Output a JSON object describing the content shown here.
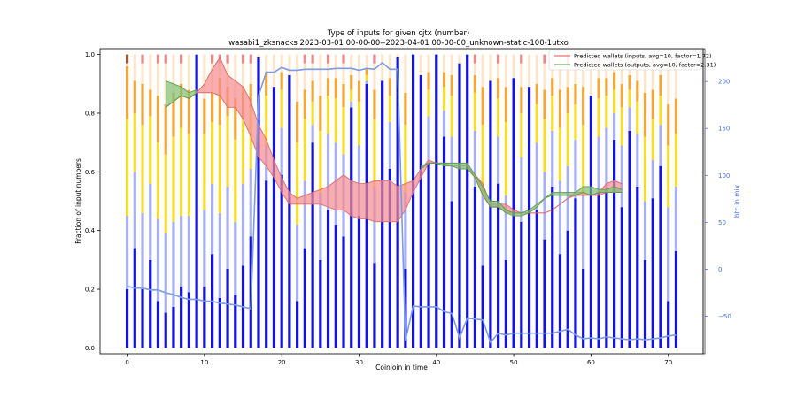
{
  "chart_data": {
    "type": "bar",
    "title": "Type of inputs for given cjtx (number)",
    "subtitle": "wasabi1_zksnacks 2023-03-01 00-00-00--2023-04-01 00-00-00_unknown-static-100-1utxo",
    "xlabel": "Coinjoin in time",
    "ylabel": "Fraction of input numbers",
    "y2label": "btc in mix",
    "xlim": [
      -3.5,
      74.5
    ],
    "ylim": [
      -0.02,
      1.02
    ],
    "y2lim": [
      -90,
      235
    ],
    "xticks": [
      0,
      10,
      20,
      30,
      40,
      50,
      60,
      70
    ],
    "yticks": [
      0.0,
      0.2,
      0.4,
      0.6,
      0.8,
      1.0
    ],
    "y2ticks": [
      -50,
      0,
      50,
      100,
      150,
      200
    ],
    "grid": false,
    "legend_position": "top-right",
    "legend": [
      {
        "label": "Predicted wallets (inputs, avg=10, factor=1.72)",
        "color": "#f07070"
      },
      {
        "label": "Predicted wallets (outputs, avg=10, factor=2.31)",
        "color": "#70b070"
      }
    ],
    "colors": {
      "fresh": "#1414d2",
      "remix": "#a9b0f0",
      "friends": "#f5dc32",
      "friends2": "#f0a83c",
      "other": "#fbe6cc",
      "peak": "#e88a8a",
      "dark": "#9a5a38",
      "btc_line": "#7b9be6",
      "inputs_fill": "#f58a8f",
      "inputs_line": "#d96b6b",
      "outputs_fill": "#7fbf6f",
      "outputs_line": "#5d9a4f"
    },
    "bars": {
      "x": [
        0,
        1,
        2,
        3,
        4,
        5,
        6,
        7,
        8,
        9,
        10,
        11,
        12,
        13,
        14,
        15,
        16,
        17,
        18,
        19,
        20,
        21,
        22,
        23,
        24,
        25,
        26,
        27,
        28,
        29,
        30,
        31,
        32,
        33,
        34,
        35,
        36,
        37,
        38,
        39,
        40,
        41,
        42,
        43,
        44,
        45,
        46,
        47,
        48,
        49,
        50,
        51,
        52,
        53,
        54,
        55,
        56,
        57,
        58,
        59,
        60,
        61,
        62,
        63,
        64,
        65,
        66,
        67,
        68,
        69,
        70,
        71
      ],
      "fresh": [
        0.2,
        0.34,
        0.2,
        0.3,
        0.16,
        0.12,
        0.14,
        0.21,
        0.19,
        1.0,
        0.21,
        0.32,
        0.17,
        0.27,
        0.18,
        0.28,
        0.38,
        0.99,
        0.57,
        0.89,
        0.59,
        0.93,
        0.16,
        0.34,
        0.7,
        0.3,
        0.47,
        0.42,
        0.38,
        0.82,
        0.45,
        0.9,
        0.29,
        0.91,
        0.61,
        0.99,
        0.27,
        1.0,
        0.93,
        0.63,
        1.0,
        0.72,
        0.5,
        0.97,
        1.0,
        0.55,
        0.28,
        0.91,
        0.56,
        0.3,
        0.92,
        0.43,
        0.89,
        0.47,
        0.37,
        0.55,
        0.32,
        0.4,
        0.51,
        0.27,
        0.86,
        0.53,
        0.54,
        0.71,
        0.48,
        0.74,
        0.55,
        0.3,
        0.51,
        0.62,
        0.16,
        0.33
      ],
      "remix": [
        0.45,
        0.6,
        0.46,
        0.56,
        0.44,
        0.39,
        0.43,
        0.45,
        0.45,
        1.0,
        0.47,
        0.56,
        0.46,
        0.55,
        0.43,
        0.56,
        0.61,
        0.99,
        0.69,
        0.89,
        0.75,
        0.93,
        0.42,
        0.57,
        0.76,
        0.53,
        0.73,
        0.7,
        0.66,
        0.84,
        0.69,
        0.91,
        0.55,
        0.91,
        0.77,
        0.99,
        0.53,
        1.0,
        0.93,
        0.79,
        1.0,
        0.81,
        0.72,
        0.97,
        1.0,
        0.74,
        0.52,
        0.91,
        0.72,
        0.52,
        0.92,
        0.65,
        0.89,
        0.7,
        0.6,
        0.74,
        0.57,
        0.62,
        0.71,
        0.52,
        0.86,
        0.72,
        0.75,
        0.8,
        0.69,
        0.82,
        0.73,
        0.5,
        0.64,
        0.76,
        0.48,
        0.55
      ],
      "friends": [
        0.78,
        0.8,
        0.76,
        0.79,
        0.7,
        0.66,
        0.72,
        0.75,
        0.73,
        1.0,
        0.73,
        0.77,
        0.76,
        0.79,
        0.71,
        0.78,
        0.82,
        0.99,
        0.86,
        0.89,
        0.88,
        0.93,
        0.7,
        0.78,
        0.84,
        0.74,
        0.86,
        0.85,
        0.82,
        0.88,
        0.84,
        0.93,
        0.78,
        0.91,
        0.86,
        0.99,
        0.76,
        1.0,
        0.93,
        0.88,
        1.0,
        0.89,
        0.86,
        0.97,
        1.0,
        0.87,
        0.76,
        0.91,
        0.85,
        0.77,
        0.92,
        0.8,
        0.89,
        0.83,
        0.78,
        0.86,
        0.75,
        0.8,
        0.83,
        0.76,
        0.86,
        0.85,
        0.86,
        0.88,
        0.82,
        0.88,
        0.84,
        0.72,
        0.78,
        0.86,
        0.69,
        0.73
      ],
      "friends2": [
        0.96,
        0.91,
        0.9,
        0.88,
        0.86,
        0.83,
        0.87,
        0.9,
        0.88,
        1.0,
        0.85,
        0.87,
        0.92,
        0.89,
        0.85,
        0.89,
        0.9,
        0.99,
        0.94,
        0.89,
        0.94,
        0.93,
        0.84,
        0.88,
        0.91,
        0.86,
        0.92,
        0.92,
        0.9,
        0.93,
        0.91,
        0.95,
        0.88,
        0.91,
        0.92,
        0.99,
        0.87,
        1.0,
        0.93,
        0.94,
        1.0,
        0.94,
        0.93,
        0.97,
        1.0,
        0.93,
        0.89,
        0.91,
        0.92,
        0.89,
        0.92,
        0.89,
        0.89,
        0.9,
        0.88,
        0.92,
        0.88,
        0.89,
        0.9,
        0.89,
        0.86,
        0.92,
        0.92,
        0.94,
        0.9,
        0.93,
        0.91,
        0.87,
        0.88,
        0.93,
        0.83,
        0.85
      ],
      "peak": [
        0.0,
        0.0,
        0.97,
        0.0,
        0.97,
        0.97,
        0.0,
        0.97,
        0.0,
        0.0,
        0.0,
        0.97,
        0.97,
        0.97,
        0.0,
        0.97,
        0.97,
        0.0,
        0.0,
        0.0,
        0.0,
        0.0,
        0.0,
        0.97,
        0.97,
        0.0,
        0.97,
        0.0,
        0.97,
        0.0,
        0.0,
        0.0,
        0.97,
        0.0,
        0.0,
        0.0,
        0.0,
        0.0,
        0.0,
        0.0,
        0.0,
        0.0,
        0.0,
        0.0,
        0.0,
        0.97,
        0.0,
        0.0,
        0.97,
        0.0,
        0.0,
        0.97,
        0.0,
        0.0,
        0.97,
        0.0,
        0.0,
        0.97,
        0.0,
        0.0,
        0.0,
        0.97,
        0.0,
        0.97,
        0.0,
        0.0,
        0.97,
        0.0,
        0.97,
        0.0,
        0.0,
        0.97
      ],
      "dark": [
        0.97,
        0.0,
        0.0,
        0.0,
        0.0,
        0.0,
        0.0,
        0.0,
        0.0,
        0.0,
        0.0,
        0.0,
        0.0,
        0.0,
        0.0,
        0.0,
        0.0,
        0.0,
        0.0,
        0.0,
        0.0,
        0.0,
        0.0,
        0.0,
        0.0,
        0.0,
        0.0,
        0.0,
        0.0,
        0.0,
        0.0,
        0.0,
        0.0,
        0.0,
        0.0,
        0.0,
        0.0,
        0.0,
        0.0,
        0.0,
        0.0,
        0.0,
        0.0,
        0.0,
        0.0,
        0.0,
        0.0,
        0.0,
        0.0,
        0.0,
        0.0,
        0.0,
        0.0,
        0.0,
        0.0,
        0.0,
        0.0,
        0.0,
        0.0,
        0.0,
        0.0,
        0.0,
        0.0,
        0.0,
        0.0,
        0.0,
        0.0,
        0.0,
        0.0,
        0.0,
        0.0,
        0.0
      ]
    },
    "btc_in_mix": {
      "x": [
        0,
        1,
        2,
        3,
        4,
        5,
        6,
        7,
        8,
        9,
        10,
        11,
        12,
        13,
        14,
        15,
        16,
        17,
        18,
        19,
        20,
        21,
        22,
        23,
        24,
        25,
        26,
        27,
        28,
        29,
        30,
        31,
        32,
        33,
        34,
        35,
        36,
        37,
        38,
        39,
        40,
        41,
        42,
        43,
        44,
        45,
        46,
        47,
        48,
        49,
        50,
        51,
        52,
        53,
        54,
        55,
        56,
        57,
        58,
        59,
        60,
        61,
        62,
        63,
        64,
        65,
        66,
        67,
        68,
        69,
        70,
        71
      ],
      "y": [
        -18,
        -20,
        -20,
        -22,
        -22,
        -25,
        -27,
        -30,
        -32,
        -32,
        -34,
        -34,
        -36,
        -37,
        -38,
        -40,
        -42,
        185,
        210,
        210,
        215,
        212,
        212,
        213,
        213,
        213,
        213,
        214,
        214,
        214,
        212,
        214,
        213,
        220,
        213,
        213,
        -76,
        -39,
        -40,
        -40,
        -40,
        -45,
        -47,
        -73,
        -52,
        -53,
        -54,
        -78,
        -68,
        -70,
        -68,
        -68,
        -68,
        -68,
        -68,
        -68,
        -66,
        -64,
        -70,
        -74,
        -73,
        -74,
        -72,
        -73,
        -74,
        -75,
        -74,
        -75,
        -74,
        -73,
        -71,
        -70
      ]
    },
    "predicted_inputs": {
      "x": [
        5,
        6,
        7,
        8,
        9,
        10,
        11,
        12,
        13,
        14,
        15,
        16,
        17,
        18,
        19,
        20,
        21,
        22,
        23,
        24,
        25,
        26,
        27,
        28,
        29,
        30,
        31,
        32,
        33,
        34,
        35,
        36,
        37,
        38,
        39,
        40,
        41,
        42,
        43,
        44,
        45,
        46,
        47,
        48,
        49,
        50,
        51,
        52,
        53,
        54,
        55,
        56,
        57,
        58,
        59,
        60,
        61,
        62,
        63,
        64
      ],
      "upper": [
        0.82,
        0.84,
        0.86,
        0.85,
        0.87,
        0.9,
        0.95,
        0.99,
        0.93,
        0.91,
        0.89,
        0.84,
        0.76,
        0.71,
        0.64,
        0.58,
        0.53,
        0.51,
        0.52,
        0.53,
        0.54,
        0.55,
        0.57,
        0.59,
        0.57,
        0.56,
        0.56,
        0.57,
        0.57,
        0.57,
        0.55,
        0.56,
        0.57,
        0.61,
        0.64,
        0.63,
        0.63,
        0.62,
        0.62,
        0.62,
        0.59,
        0.56,
        0.49,
        0.49,
        0.49,
        0.47,
        0.46,
        0.46,
        0.46,
        0.46,
        0.47,
        0.49,
        0.51,
        0.53,
        0.53,
        0.52,
        0.53,
        0.56,
        0.57,
        0.56
      ],
      "lower": [
        0.82,
        0.84,
        0.86,
        0.85,
        0.87,
        0.87,
        0.87,
        0.86,
        0.82,
        0.82,
        0.78,
        0.72,
        0.65,
        0.62,
        0.58,
        0.53,
        0.49,
        0.49,
        0.49,
        0.49,
        0.49,
        0.48,
        0.47,
        0.47,
        0.45,
        0.44,
        0.44,
        0.43,
        0.43,
        0.43,
        0.43,
        0.47,
        0.53,
        0.58,
        0.63,
        0.63,
        0.63,
        0.62,
        0.62,
        0.62,
        0.58,
        0.52,
        0.48,
        0.48,
        0.46,
        0.46,
        0.46,
        0.46,
        0.46,
        0.46,
        0.47,
        0.49,
        0.51,
        0.52,
        0.52,
        0.52,
        0.52,
        0.53,
        0.53,
        0.53
      ]
    },
    "predicted_outputs": {
      "x": [
        5,
        6,
        7,
        8,
        9,
        38,
        39,
        40,
        41,
        42,
        43,
        44,
        45,
        46,
        47,
        48,
        49,
        50,
        51,
        52,
        53,
        54,
        55,
        56,
        57,
        58,
        59,
        60,
        61,
        62,
        63,
        64
      ],
      "upper": [
        0.91,
        0.9,
        0.89,
        0.87,
        0.88,
        0.62,
        0.63,
        0.63,
        0.63,
        0.63,
        0.63,
        0.63,
        0.59,
        0.55,
        0.5,
        0.5,
        0.47,
        0.46,
        0.46,
        0.47,
        0.49,
        0.51,
        0.53,
        0.53,
        0.53,
        0.53,
        0.55,
        0.55,
        0.54,
        0.54,
        0.55,
        0.54
      ],
      "lower": [
        0.82,
        0.84,
        0.86,
        0.85,
        0.87,
        0.61,
        0.63,
        0.63,
        0.62,
        0.62,
        0.61,
        0.61,
        0.58,
        0.52,
        0.48,
        0.48,
        0.46,
        0.45,
        0.45,
        0.46,
        0.48,
        0.51,
        0.52,
        0.52,
        0.52,
        0.52,
        0.53,
        0.52,
        0.53,
        0.53,
        0.53,
        0.53
      ]
    }
  }
}
